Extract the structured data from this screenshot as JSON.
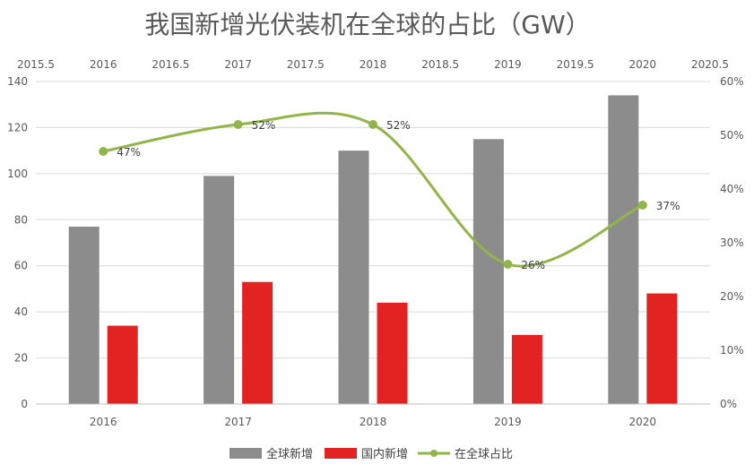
{
  "chart_data": {
    "type": "bar+line",
    "title": "我国新增光伏装机在全球的占比（GW）",
    "categories": [
      "2016",
      "2017",
      "2018",
      "2019",
      "2020"
    ],
    "bar_series": [
      {
        "name": "全球新增",
        "values": [
          77,
          99,
          110,
          115,
          134
        ],
        "color": "#8c8c8c"
      },
      {
        "name": "国内新增",
        "values": [
          34,
          53,
          44,
          30,
          48
        ],
        "color": "#e32322"
      }
    ],
    "line_series": {
      "name": "在全球占比",
      "values": [
        47,
        52,
        52,
        26,
        37
      ],
      "labels": [
        "47%",
        "52%",
        "52%",
        "26%",
        "37%"
      ],
      "color": "#92b54a",
      "smooth": true
    },
    "ylim": [
      0,
      140
    ],
    "y_ticks": [
      "0",
      "20",
      "40",
      "60",
      "80",
      "100",
      "120",
      "140"
    ],
    "y2lim": [
      0,
      60
    ],
    "y2_ticks": [
      "0%",
      "10%",
      "20%",
      "30%",
      "40%",
      "50%",
      "60%"
    ],
    "x2_ticks": [
      "2015.5",
      "2016",
      "2016.5",
      "2017",
      "2017.5",
      "2018",
      "2018.5",
      "2019",
      "2019.5",
      "2020",
      "2020.5"
    ],
    "grid": true,
    "legend": "bottom"
  }
}
